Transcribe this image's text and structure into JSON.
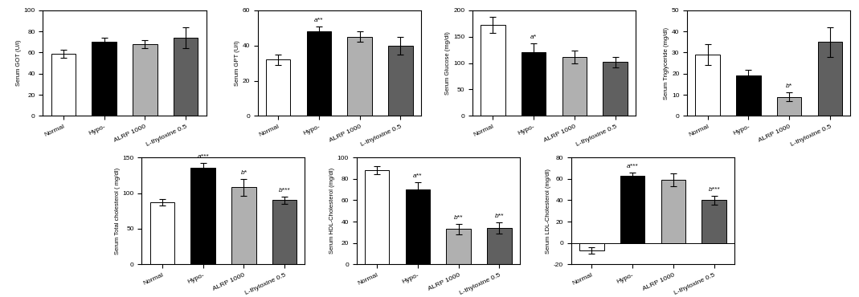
{
  "chart_data": [
    {
      "type": "bar",
      "ylabel": "Serum GOT (U/l)",
      "categories": [
        "Normal",
        "Hypo-",
        "ALRP 1000",
        "L-thyloxine 0.5"
      ],
      "colors": [
        "white",
        "black",
        "#b0b0b0",
        "#606060"
      ],
      "values": [
        59,
        70,
        68,
        74
      ],
      "errors": [
        4,
        4,
        4,
        10
      ],
      "ylim": [
        0,
        100
      ],
      "yticks": [
        0,
        20,
        40,
        60,
        80,
        100
      ]
    },
    {
      "type": "bar",
      "ylabel": "Serum GPT (U/l)",
      "categories": [
        "Normal",
        "Hypo-",
        "ALRP 1000",
        "L-thyloxine 0.5"
      ],
      "colors": [
        "white",
        "black",
        "#b0b0b0",
        "#606060"
      ],
      "values": [
        32,
        48,
        45,
        40
      ],
      "errors": [
        3,
        3,
        3,
        5
      ],
      "ylim": [
        0,
        60
      ],
      "yticks": [
        0,
        20,
        40,
        60
      ],
      "annotations": [
        {
          "text": "a**",
          "category": "Hypo-"
        }
      ]
    },
    {
      "type": "bar",
      "ylabel": "Serum Glucose (mg/dl)",
      "categories": [
        "Normal",
        "Hypo-",
        "ALRP 1000",
        "L-thyloxine 0.5"
      ],
      "colors": [
        "white",
        "black",
        "#b0b0b0",
        "#606060"
      ],
      "values": [
        172,
        120,
        112,
        102
      ],
      "errors": [
        15,
        18,
        12,
        10
      ],
      "ylim": [
        0,
        200
      ],
      "yticks": [
        0,
        50,
        100,
        150,
        200
      ],
      "annotations": [
        {
          "text": "a*",
          "category": "Hypo-"
        }
      ]
    },
    {
      "type": "bar",
      "ylabel": "Serum Triglyceride (mg/dl)",
      "categories": [
        "Normal",
        "Hypo-",
        "ALRP 1000",
        "L-thyloxine 0.5"
      ],
      "colors": [
        "white",
        "black",
        "#b0b0b0",
        "#606060"
      ],
      "values": [
        29,
        19,
        9,
        35
      ],
      "errors": [
        5,
        3,
        2,
        7
      ],
      "ylim": [
        0,
        50
      ],
      "yticks": [
        0,
        10,
        20,
        30,
        40,
        50
      ],
      "annotations": [
        {
          "text": "b*",
          "category": "ALRP 1000"
        }
      ]
    },
    {
      "type": "bar",
      "ylabel": "Serum Total cholesterol ( mg/dl)",
      "categories": [
        "Normal",
        "Hypo-",
        "ALRP 1000",
        "L-thyloxine 0.5"
      ],
      "colors": [
        "white",
        "black",
        "#b0b0b0",
        "#606060"
      ],
      "values": [
        87,
        135,
        108,
        90
      ],
      "errors": [
        4,
        7,
        12,
        5
      ],
      "ylim": [
        0,
        150
      ],
      "yticks": [
        0,
        50,
        100,
        150
      ],
      "annotations": [
        {
          "text": "a***",
          "category": "Hypo-"
        },
        {
          "text": "b*",
          "category": "ALRP 1000"
        },
        {
          "text": "b***",
          "category": "L-thyloxine 0.5"
        }
      ]
    },
    {
      "type": "bar",
      "ylabel": "Serum HDL-Cholesterol (mg/dl)",
      "categories": [
        "Normal",
        "Hypo-",
        "ALRP 1000",
        "L-thyloxine 0.5"
      ],
      "colors": [
        "white",
        "black",
        "#b0b0b0",
        "#606060"
      ],
      "values": [
        88,
        70,
        33,
        34
      ],
      "errors": [
        4,
        7,
        5,
        5
      ],
      "ylim": [
        0,
        100
      ],
      "yticks": [
        0,
        20,
        40,
        60,
        80,
        100
      ],
      "annotations": [
        {
          "text": "a**",
          "category": "Hypo-"
        },
        {
          "text": "b**",
          "category": "ALRP 1000"
        },
        {
          "text": "b**",
          "category": "L-thyloxine 0.5"
        }
      ]
    },
    {
      "type": "bar",
      "ylabel": "Serum LDL-Cholesterol (mg/dl)",
      "categories": [
        "Normal",
        "Hypo-",
        "ALRP 1000",
        "L-thyloxine 0.5"
      ],
      "colors": [
        "white",
        "black",
        "#b0b0b0",
        "#606060"
      ],
      "values": [
        -7,
        63,
        59,
        40
      ],
      "errors": [
        3,
        3,
        6,
        4
      ],
      "ylim": [
        -20,
        80
      ],
      "yticks": [
        -20,
        0,
        20,
        40,
        60,
        80
      ],
      "annotations": [
        {
          "text": "a***",
          "category": "Hypo-"
        },
        {
          "text": "b***",
          "category": "L-thyloxine 0.5"
        }
      ]
    }
  ]
}
